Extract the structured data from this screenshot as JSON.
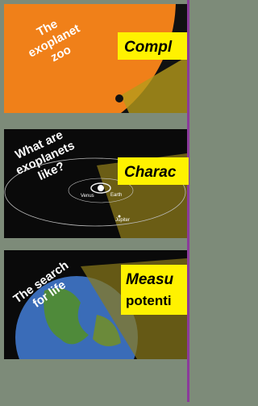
{
  "panels": [
    {
      "title_lines": [
        "The",
        "exoplanet",
        "zoo"
      ],
      "label_lines": [
        "Compl"
      ]
    },
    {
      "title_lines": [
        "What are",
        "exoplanets",
        "like?"
      ],
      "label_lines": [
        "Charac"
      ],
      "planet_labels": [
        "Venus",
        "Earth",
        "Jupiter"
      ]
    },
    {
      "title_lines": [
        "The search",
        "for life"
      ],
      "label_lines": [
        "Measu",
        "potenti"
      ]
    }
  ]
}
